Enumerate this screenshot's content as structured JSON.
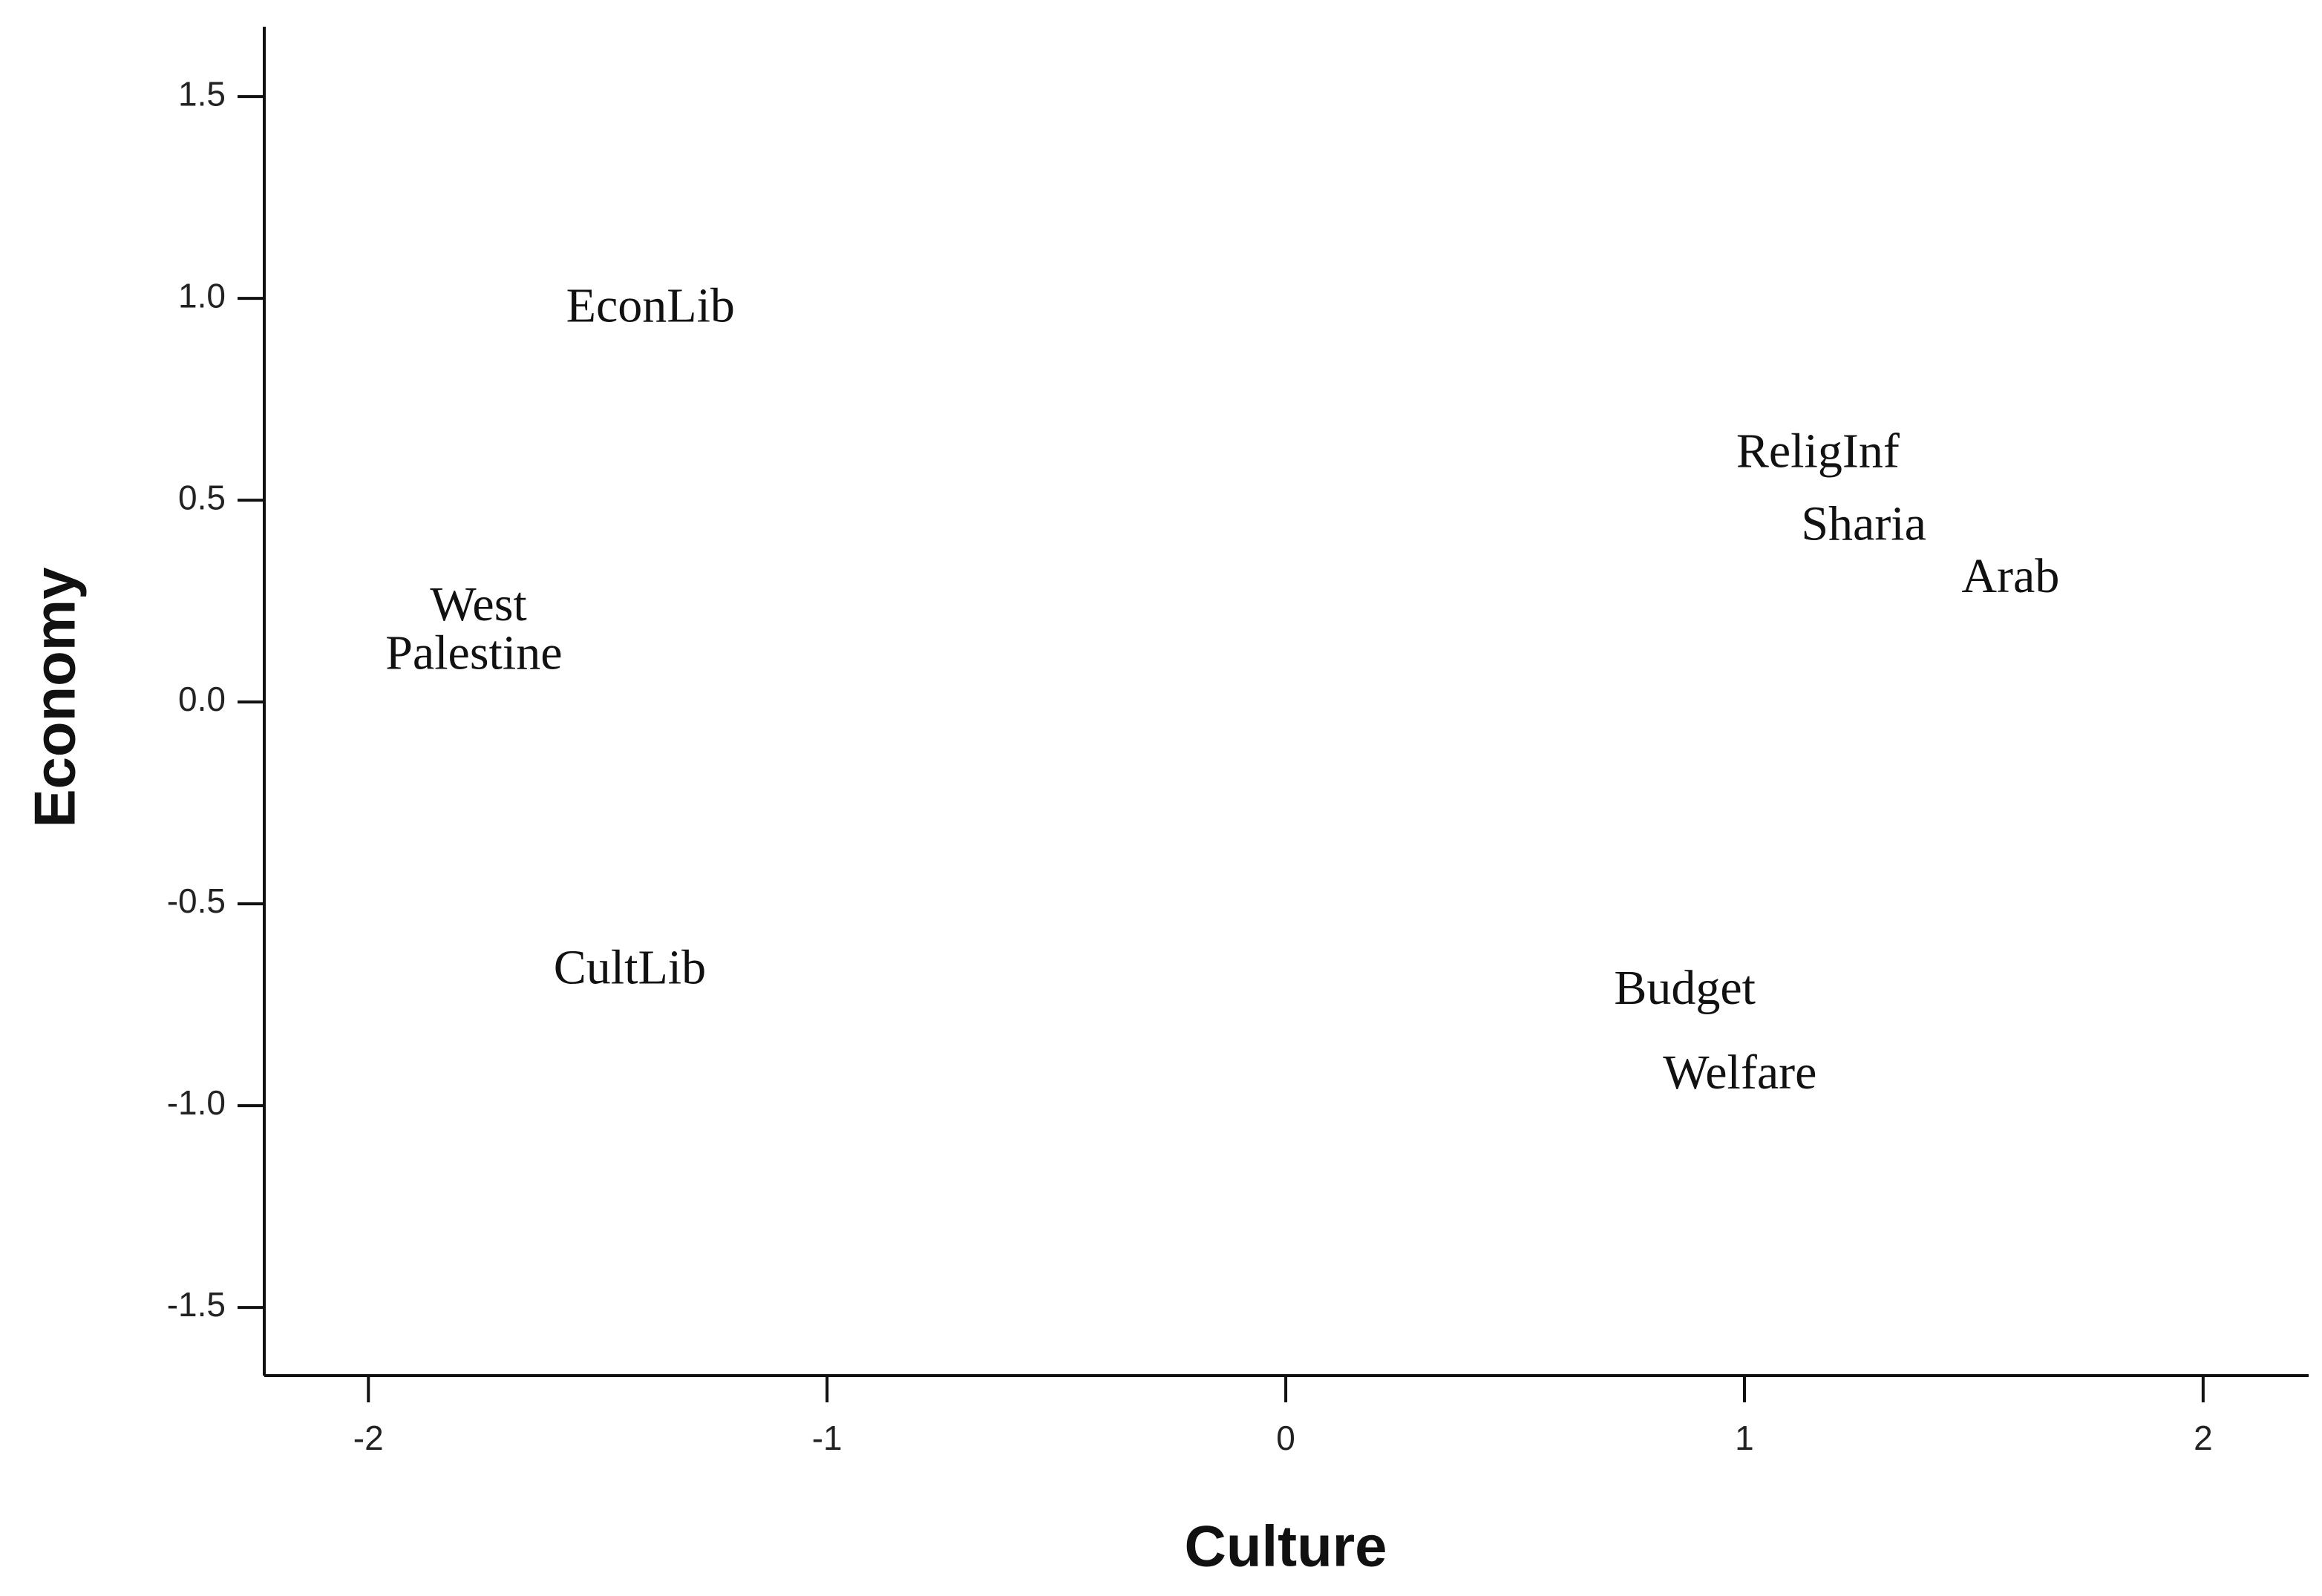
{
  "chart_data": {
    "type": "scatter",
    "x_label": "Culture",
    "y_label": "Economy",
    "labels": [
      "EconLib",
      "ReligInf",
      "Sharia",
      "Arab",
      "West",
      "Palestine",
      "CultLib",
      "Budget",
      "Welfare"
    ],
    "x": [
      -1.385,
      1.16,
      1.26,
      1.58,
      -1.76,
      -1.77,
      -1.43,
      0.87,
      0.99
    ],
    "values": [
      0.97,
      0.61,
      0.43,
      0.3,
      0.23,
      0.11,
      -0.67,
      -0.72,
      -0.93
    ],
    "color": "#000000",
    "xlim": [
      -2.227,
      2.23
    ],
    "xticks": [
      -2,
      -1,
      0,
      1,
      2
    ],
    "ylim": [
      -1.669,
      1.673
    ],
    "yticks": [
      1.5,
      {
        "value": 1.0,
        "label": "1.0"
      },
      0.5,
      {
        "value": 0.0,
        "label": "0.0"
      },
      -0.5,
      {
        "value": -1.0,
        "label": "-1.0"
      },
      -1.5
    ],
    "grid": false
  }
}
